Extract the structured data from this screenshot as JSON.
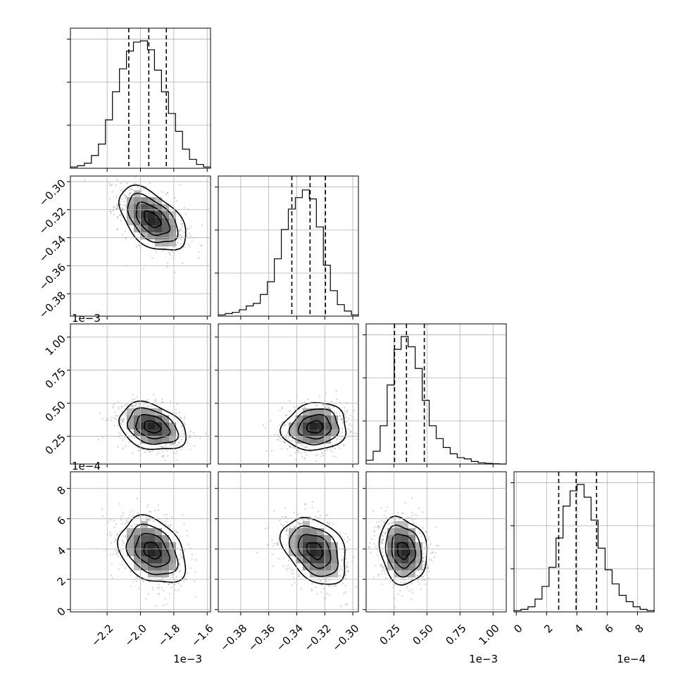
{
  "chart_data": {
    "type": "corner",
    "parameters": [
      {
        "range": [
          -2.42,
          -1.58
        ],
        "ticks": [
          -2.2,
          -2.0,
          -1.8,
          -1.6
        ],
        "tick_labels": [
          "−2.2",
          "−2.0",
          "−1.8",
          "−1.6"
        ],
        "offset": "1e−3",
        "quantiles": [
          -2.07,
          -1.95,
          -1.845
        ],
        "mode": -1.93,
        "sigma": 0.1,
        "hist": [
          0.01,
          0.02,
          0.04,
          0.1,
          0.19,
          0.38,
          0.6,
          0.78,
          0.92,
          0.99,
          1.0,
          0.93,
          0.77,
          0.6,
          0.43,
          0.29,
          0.15,
          0.07,
          0.03,
          0.01
        ]
      },
      {
        "range": [
          -0.396,
          -0.296
        ],
        "ticks": [
          -0.38,
          -0.36,
          -0.34,
          -0.32,
          -0.3
        ],
        "tick_labels": [
          "−0.38",
          "−0.36",
          "−0.34",
          "−0.32",
          "−0.30"
        ],
        "offset": "",
        "quantiles": [
          -0.3435,
          -0.3305,
          -0.3195
        ],
        "mode": -0.327,
        "sigma": 0.0115,
        "hist": [
          0.01,
          0.02,
          0.03,
          0.05,
          0.08,
          0.1,
          0.17,
          0.27,
          0.45,
          0.68,
          0.84,
          0.93,
          0.99,
          0.92,
          0.7,
          0.4,
          0.2,
          0.09,
          0.04,
          0.01
        ]
      },
      {
        "range": [
          0.04,
          1.1
        ],
        "ticks": [
          0.25,
          0.5,
          0.75,
          1.0
        ],
        "tick_labels": [
          "0.25",
          "0.50",
          "0.75",
          "1.00"
        ],
        "offset": "1e−3",
        "quantiles": [
          0.255,
          0.345,
          0.48
        ],
        "mode": 0.32,
        "sigma": 0.09,
        "hist": [
          0.03,
          0.1,
          0.3,
          0.62,
          0.9,
          1.0,
          0.92,
          0.75,
          0.5,
          0.3,
          0.2,
          0.13,
          0.08,
          0.05,
          0.04,
          0.02,
          0.01,
          0.005,
          0.002,
          0.0
        ]
      },
      {
        "range": [
          -0.15,
          9.1
        ],
        "ticks": [
          0,
          2,
          4,
          6,
          8
        ],
        "tick_labels": [
          "0",
          "2",
          "4",
          "6",
          "8"
        ],
        "offset": "1e−4",
        "quantiles": [
          2.8,
          3.95,
          5.3
        ],
        "mode": 3.9,
        "sigma": 1.1,
        "hist": [
          0.01,
          0.02,
          0.04,
          0.1,
          0.2,
          0.35,
          0.58,
          0.83,
          0.95,
          1.0,
          0.9,
          0.72,
          0.5,
          0.33,
          0.22,
          0.13,
          0.08,
          0.04,
          0.02,
          0.01
        ]
      }
    ],
    "correlations": [
      [
        1,
        -0.5,
        -0.3,
        -0.3
      ],
      [
        -0.5,
        1,
        0.1,
        -0.35
      ],
      [
        -0.3,
        0.1,
        1,
        -0.15
      ],
      [
        -0.3,
        -0.35,
        -0.15,
        1
      ]
    ],
    "contour_levels_sigma": [
      0.5,
      1.0,
      1.5,
      2.0
    ],
    "grid": true
  }
}
